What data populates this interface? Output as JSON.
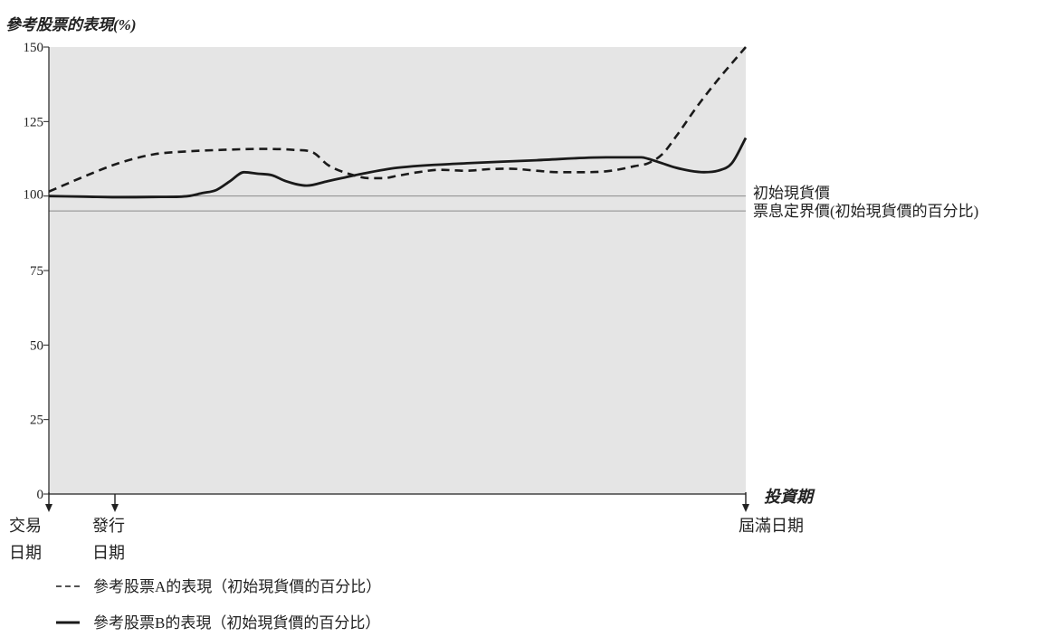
{
  "chart_data": {
    "type": "line",
    "title": "參考股票的表現(%)",
    "xlabel": "投資期",
    "ylim": [
      0,
      150
    ],
    "yticks": [
      0,
      25,
      50,
      75,
      100,
      125,
      150
    ],
    "background": "#e5e5e5",
    "reference_lines": [
      {
        "value": 100,
        "label": "初始現貨價"
      },
      {
        "value": 95,
        "label": "票息定界價(初始現貨價的百分比)"
      }
    ],
    "events": [
      {
        "label": [
          "交易",
          "日期"
        ]
      },
      {
        "label": [
          "發行",
          "日期"
        ]
      },
      {
        "label": [
          "屆滿日期"
        ]
      }
    ],
    "series": [
      {
        "name": "參考股票A的表現（初始現貨價的百分比）",
        "style": "dashed",
        "x": [
          0,
          0.02,
          0.05,
          0.1,
          0.15,
          0.2,
          0.25,
          0.3,
          0.35,
          0.38,
          0.4,
          0.43,
          0.46,
          0.48,
          0.5,
          0.53,
          0.56,
          0.6,
          0.63,
          0.66,
          0.7,
          0.73,
          0.77,
          0.8,
          0.82,
          0.84,
          0.86,
          0.88,
          0.9,
          0.93,
          0.96,
          1.0
        ],
        "y": [
          101.5,
          103.5,
          106.5,
          111,
          114,
          115,
          115.5,
          115.8,
          115.5,
          114.5,
          110.5,
          107.5,
          106,
          106,
          106.8,
          108,
          108.8,
          108.5,
          109,
          109.2,
          108.5,
          108,
          108,
          108.3,
          109,
          110,
          111,
          114,
          120,
          130,
          139,
          150
        ]
      },
      {
        "name": "參考股票B的表現（初始現貨價的百分比）",
        "style": "solid",
        "x": [
          0,
          0.05,
          0.1,
          0.15,
          0.2,
          0.22,
          0.24,
          0.26,
          0.28,
          0.3,
          0.32,
          0.34,
          0.37,
          0.4,
          0.42,
          0.45,
          0.5,
          0.6,
          0.7,
          0.8,
          0.85,
          0.86,
          0.88,
          0.9,
          0.92,
          0.94,
          0.96,
          0.98,
          1.0
        ],
        "y": [
          100,
          99.8,
          99.6,
          99.7,
          100,
          101,
          102,
          105,
          108,
          107.5,
          107,
          105,
          103.5,
          105,
          106,
          107.5,
          109.5,
          111,
          112,
          113,
          113,
          112.5,
          111,
          109.5,
          108.5,
          108,
          108.5,
          111,
          119.5
        ]
      }
    ]
  }
}
